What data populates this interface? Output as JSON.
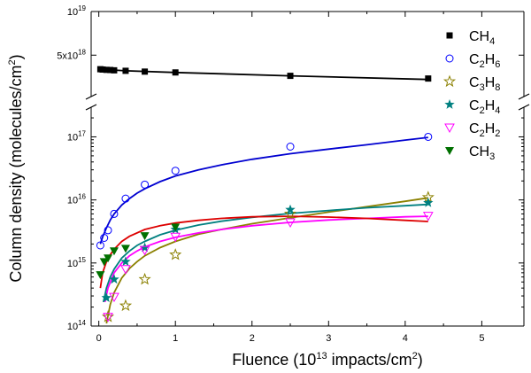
{
  "chart_data": {
    "type": "scatter",
    "xlabel": "Fluence (10",
    "xlabel_sup": "13",
    "xlabel_tail": " impacts/cm",
    "xlabel_sup2": "2",
    "xlabel_close": ")",
    "ylabel": "Column density (molecules/cm",
    "ylabel_sup": "2",
    "ylabel_close": ")",
    "xlim": [
      -0.1,
      5.55
    ],
    "x_ticks": [
      0,
      1,
      2,
      3,
      4,
      5
    ],
    "x_tick_labels": [
      "0",
      "1",
      "2",
      "3",
      "4",
      "5"
    ],
    "y_scale": "log",
    "y_axis_break": true,
    "upper_panel": {
      "ylim_log": [
        18.45,
        19.0
      ],
      "tick_labels": [
        {
          "value": 5e+18,
          "mantissa": "5x10",
          "exp": "18"
        },
        {
          "value": 1e+19,
          "mantissa": "10",
          "exp": "19"
        }
      ]
    },
    "lower_panel": {
      "ylim_log": [
        14.0,
        17.4
      ],
      "tick_labels": [
        {
          "value": 100000000000000.0,
          "mantissa": "10",
          "exp": "14"
        },
        {
          "value": 1000000000000000.0,
          "mantissa": "10",
          "exp": "15"
        },
        {
          "value": 1e+16,
          "mantissa": "10",
          "exp": "16"
        },
        {
          "value": 1e+17,
          "mantissa": "10",
          "exp": "17"
        }
      ]
    },
    "series": [
      {
        "name": "CH4",
        "label_main": "CH",
        "label_sub": "4",
        "marker": "filled-square",
        "color": "#000000",
        "panel": "upper",
        "x": [
          0.02,
          0.05,
          0.1,
          0.15,
          0.2,
          0.35,
          0.6,
          1.0,
          2.5,
          4.3
        ],
        "y": [
          4e+18,
          3.98e+18,
          3.96e+18,
          3.95e+18,
          3.93e+18,
          3.9e+18,
          3.85e+18,
          3.8e+18,
          3.6e+18,
          3.45e+18
        ],
        "fit_color": "#000000",
        "fit_x": [
          0.0,
          0.35,
          1.0,
          2.5,
          4.3
        ],
        "fit_y": [
          4e+18,
          3.9e+18,
          3.8e+18,
          3.6e+18,
          3.4e+18
        ]
      },
      {
        "name": "C2H6",
        "label_main": "C",
        "label_sub": "2",
        "label_mid": "H",
        "label_sub2": "6",
        "marker": "open-circle",
        "color": "#0000ff",
        "panel": "lower",
        "x": [
          0.02,
          0.07,
          0.12,
          0.2,
          0.35,
          0.6,
          1.0,
          2.5,
          4.3
        ],
        "y": [
          1900000000000000.0,
          2500000000000000.0,
          3300000000000000.0,
          6000000000000000.0,
          1.05e+16,
          1.75e+16,
          2.9e+16,
          7e+16,
          1e+17
        ],
        "fit_color": "#0000d0",
        "fit_x": [
          0.02,
          0.05,
          0.1,
          0.15,
          0.2,
          0.3,
          0.4,
          0.5,
          0.6,
          0.8,
          1.0,
          1.3,
          1.6,
          2.0,
          2.5,
          3.0,
          3.5,
          4.0,
          4.3
        ],
        "fit_y": [
          2000000000000000.0,
          2600000000000000.0,
          3600000000000000.0,
          4800000000000000.0,
          6000000000000000.0,
          8300000000000000.0,
          1.05e+16,
          1.28e+16,
          1.5e+16,
          1.95e+16,
          2.4e+16,
          3e+16,
          3.6e+16,
          4.4e+16,
          5.4e+16,
          6.4e+16,
          7.5e+16,
          8.9e+16,
          9.8e+16
        ]
      },
      {
        "name": "C3H8",
        "label_main": "C",
        "label_sub": "3",
        "label_mid": "H",
        "label_sub2": "8",
        "marker": "open-star",
        "color": "#8b8000",
        "panel": "lower",
        "x": [
          0.12,
          0.35,
          0.6,
          1.0,
          2.5,
          4.3
        ],
        "y": [
          140000000000000.0,
          210000000000000.0,
          550000000000000.0,
          1350000000000000.0,
          6000000000000000.0,
          1.1e+16
        ],
        "fit_color": "#8b8000",
        "fit_x": [
          0.1,
          0.15,
          0.2,
          0.3,
          0.4,
          0.5,
          0.6,
          0.8,
          1.0,
          1.3,
          1.6,
          2.0,
          2.5,
          3.0,
          3.5,
          4.0,
          4.3
        ],
        "fit_y": [
          110000000000000.0,
          220000000000000.0,
          340000000000000.0,
          580000000000000.0,
          820000000000000.0,
          1050000000000000.0,
          1300000000000000.0,
          1750000000000000.0,
          2200000000000000.0,
          2850000000000000.0,
          3400000000000000.0,
          4200000000000000.0,
          5200000000000000.0,
          6400000000000000.0,
          7800000000000000.0,
          9500000000000000.0,
          1.08e+16
        ]
      },
      {
        "name": "C2H4",
        "label_main": "C",
        "label_sub": "2",
        "label_mid": "H",
        "label_sub2": "4",
        "marker": "filled-star",
        "color": "#008080",
        "panel": "lower",
        "x": [
          0.1,
          0.2,
          0.35,
          0.6,
          1.0,
          2.5,
          4.3
        ],
        "y": [
          280000000000000.0,
          550000000000000.0,
          1050000000000000.0,
          1750000000000000.0,
          3400000000000000.0,
          7000000000000000.0,
          9000000000000000.0
        ],
        "fit_color": "#008080",
        "fit_x": [
          0.06,
          0.1,
          0.15,
          0.2,
          0.3,
          0.4,
          0.5,
          0.6,
          0.8,
          1.0,
          1.3,
          1.6,
          2.0,
          2.5,
          3.0,
          3.5,
          4.0,
          4.3
        ],
        "fit_y": [
          240000000000000.0,
          400000000000000.0,
          600000000000000.0,
          800000000000000.0,
          1200000000000000.0,
          1550000000000000.0,
          1900000000000000.0,
          2200000000000000.0,
          2800000000000000.0,
          3300000000000000.0,
          4000000000000000.0,
          4600000000000000.0,
          5300000000000000.0,
          6100000000000000.0,
          6800000000000000.0,
          7500000000000000.0,
          8100000000000000.0,
          8500000000000000.0
        ]
      },
      {
        "name": "C2H2",
        "label_main": "C",
        "label_sub": "2",
        "label_mid": "H",
        "label_sub2": "2",
        "marker": "open-triangle-down",
        "color": "#ff00ff",
        "panel": "lower",
        "x": [
          0.12,
          0.2,
          0.35,
          0.6,
          1.0,
          2.5,
          4.3
        ],
        "y": [
          140000000000000.0,
          290000000000000.0,
          800000000000000.0,
          1600000000000000.0,
          2600000000000000.0,
          4400000000000000.0,
          5600000000000000.0
        ],
        "fit_color": "#ff00ff",
        "fit_x": [
          0.08,
          0.12,
          0.2,
          0.3,
          0.4,
          0.5,
          0.6,
          0.8,
          1.0,
          1.3,
          1.6,
          2.0,
          2.5,
          3.0,
          3.5,
          4.0,
          4.3
        ],
        "fit_y": [
          240000000000000.0,
          400000000000000.0,
          700000000000000.0,
          1000000000000000.0,
          1300000000000000.0,
          1550000000000000.0,
          1800000000000000.0,
          2200000000000000.0,
          2550000000000000.0,
          3000000000000000.0,
          3400000000000000.0,
          3900000000000000.0,
          4400000000000000.0,
          4800000000000000.0,
          5100000000000000.0,
          5400000000000000.0,
          5500000000000000.0
        ]
      },
      {
        "name": "CH3",
        "label_main": "CH",
        "label_sub": "3",
        "marker": "filled-triangle-down",
        "color": "#007000",
        "panel": "lower",
        "x": [
          0.02,
          0.07,
          0.12,
          0.2,
          0.35,
          0.6,
          1.0
        ],
        "y": [
          650000000000000.0,
          1050000000000000.0,
          1200000000000000.0,
          1550000000000000.0,
          1700000000000000.0,
          2700000000000000.0,
          3700000000000000.0
        ],
        "fit_color": "#dd0000",
        "fit_x": [
          0.02,
          0.05,
          0.1,
          0.15,
          0.2,
          0.3,
          0.4,
          0.6,
          0.8,
          1.0,
          1.3,
          1.6,
          2.0,
          2.5,
          3.0,
          3.5,
          4.0,
          4.3
        ],
        "fit_y": [
          400000000000000.0,
          700000000000000.0,
          1050000000000000.0,
          1350000000000000.0,
          1650000000000000.0,
          2200000000000000.0,
          2650000000000000.0,
          3400000000000000.0,
          3900000000000000.0,
          4300000000000000.0,
          4750000000000000.0,
          5100000000000000.0,
          5400000000000000.0,
          5500000000000000.0,
          5350000000000000.0,
          5100000000000000.0,
          4750000000000000.0,
          4550000000000000.0
        ]
      }
    ]
  }
}
